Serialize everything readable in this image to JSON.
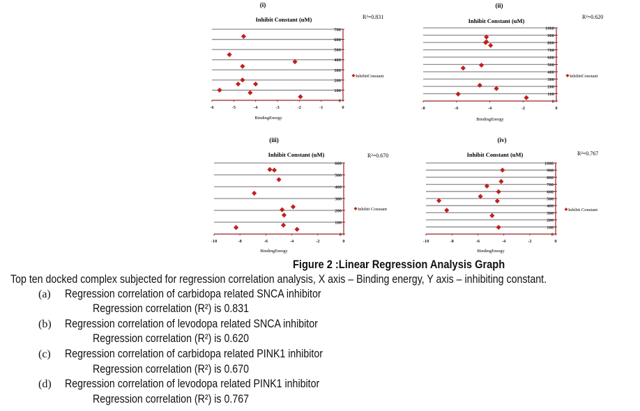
{
  "colors": {
    "marker": "#c0201c",
    "axis": "#9a2020",
    "grid": "#8c8c8c"
  },
  "chart_data": [
    {
      "type": "scatter",
      "panel": "(i)",
      "title": "Inhibit Constant (uM)",
      "xlabel": "BindingEnergy",
      "legend": "InhibitConstant",
      "legend_position": "right",
      "r2": "R²=0.831",
      "xlim": [
        -6,
        0
      ],
      "ylim": [
        0,
        700
      ],
      "xticks": [
        -6,
        -5,
        -4,
        -3,
        -2,
        -1,
        0
      ],
      "yticks": [
        0,
        100,
        200,
        300,
        400,
        500,
        600,
        700
      ],
      "points": [
        [
          -4.55,
          630
        ],
        [
          -5.2,
          450
        ],
        [
          -2.2,
          380
        ],
        [
          -4.6,
          335
        ],
        [
          -4.6,
          200
        ],
        [
          -4.8,
          160
        ],
        [
          -4.0,
          160
        ],
        [
          -5.65,
          100
        ],
        [
          -4.25,
          75
        ],
        [
          -1.95,
          35
        ]
      ]
    },
    {
      "type": "scatter",
      "panel": "(ii)",
      "title": "Inhibit Constant (uM)",
      "xlabel": "BindingEnergy",
      "legend": "InhibitConstant",
      "legend_position": "right",
      "r2": "R²=0.620",
      "xlim": [
        -8,
        0
      ],
      "ylim": [
        0,
        1000
      ],
      "xticks": [
        -8,
        -6,
        -4,
        -2,
        0
      ],
      "yticks": [
        0,
        100,
        200,
        300,
        400,
        500,
        600,
        700,
        800,
        900,
        1000
      ],
      "points": [
        [
          -4.2,
          875
        ],
        [
          -4.25,
          800
        ],
        [
          -4.2,
          810
        ],
        [
          -3.95,
          760
        ],
        [
          -4.5,
          490
        ],
        [
          -5.6,
          450
        ],
        [
          -4.6,
          215
        ],
        [
          -3.6,
          170
        ],
        [
          -5.9,
          95
        ],
        [
          -1.8,
          45
        ]
      ]
    },
    {
      "type": "scatter",
      "panel": "(iii)",
      "title": "Inhibit Constant (uM)",
      "xlabel": "BindingEnergy",
      "legend": "Inhibit Constant",
      "legend_position": "right",
      "r2": "R²=0.670",
      "xlim": [
        -10,
        0
      ],
      "ylim": [
        0,
        600
      ],
      "xticks": [
        -10,
        -8,
        -6,
        -4,
        -2,
        0
      ],
      "yticks": [
        0,
        100,
        200,
        300,
        400,
        500,
        600
      ],
      "points": [
        [
          -5.7,
          545
        ],
        [
          -5.35,
          540
        ],
        [
          -5.0,
          460
        ],
        [
          -6.9,
          345
        ],
        [
          -3.9,
          230
        ],
        [
          -4.75,
          205
        ],
        [
          -4.6,
          160
        ],
        [
          -4.65,
          75
        ],
        [
          -8.3,
          55
        ],
        [
          -3.6,
          40
        ]
      ]
    },
    {
      "type": "scatter",
      "panel": "(iv)",
      "title": "Inhibit Constant (uM)",
      "xlabel": "BindingEnergy",
      "legend": "Inhibit Constant",
      "legend_position": "right",
      "r2": "R²=0.767",
      "xlim": [
        -10,
        0
      ],
      "ylim": [
        0,
        1000
      ],
      "xticks": [
        -10,
        -8,
        -6,
        -4,
        -2,
        0
      ],
      "yticks": [
        0,
        100,
        200,
        300,
        400,
        500,
        600,
        700,
        800,
        900,
        1000
      ],
      "points": [
        [
          -4.1,
          900
        ],
        [
          -4.2,
          740
        ],
        [
          -5.3,
          675
        ],
        [
          -4.4,
          595
        ],
        [
          -5.8,
          530
        ],
        [
          -9.0,
          470
        ],
        [
          -4.5,
          465
        ],
        [
          -8.4,
          335
        ],
        [
          -4.9,
          260
        ],
        [
          -4.4,
          95
        ]
      ]
    }
  ],
  "caption": {
    "figure_title": "Figure 2 :Linear Regression Analysis Graph",
    "description": "Top ten docked complex subjected for regression correlation analysis, X axis – Binding energy, Y axis – inhibiting constant.",
    "items": [
      {
        "label": "(a)",
        "text": "Regression correlation of carbidopa related SNCA inhibitor",
        "sub": "Regression correlation (R²) is 0.831"
      },
      {
        "label": "(b)",
        "text": "Regression correlation of levodopa related SNCA inhibitor",
        "sub": "Regression correlation (R²) is 0.620"
      },
      {
        "label": "(c)",
        "text": "Regression correlation of carbidopa related PINK1 inhibitor",
        "sub": "Regression correlation (R²) is 0.670"
      },
      {
        "label": "(d)",
        "text": "Regression correlation of levodopa related PINK1 inhibitor",
        "sub": "Regression correlation (R²) is 0.767"
      }
    ]
  }
}
